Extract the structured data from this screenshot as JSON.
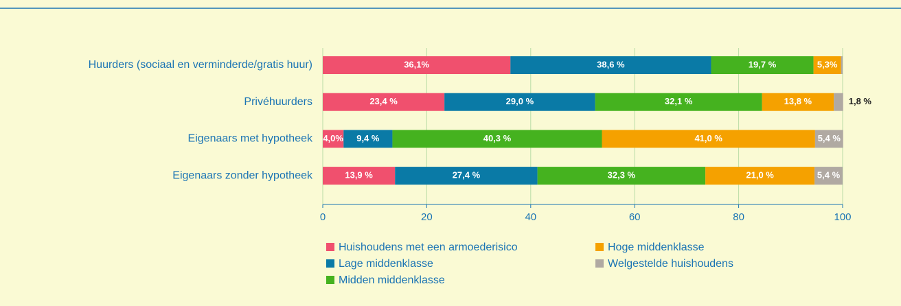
{
  "chart_data": {
    "type": "stacked_barh",
    "categories": [
      "Huurders (sociaal en verminderde/gratis huur)",
      "Privéhuurders",
      "Eigenaars met hypotheek",
      "Eigenaars zonder hypotheek"
    ],
    "series": [
      {
        "name": "Huishoudens met een armoederisico",
        "color": "#f0506e",
        "values": [
          36.1,
          23.4,
          4.0,
          13.9
        ],
        "value_labels": [
          "36,1%",
          "23,4 %",
          "4,0%",
          "13,9 %"
        ]
      },
      {
        "name": "Lage middenklasse",
        "color": "#0a7aa6",
        "values": [
          38.6,
          29.0,
          9.4,
          27.4
        ],
        "value_labels": [
          "38,6 %",
          "29,0 %",
          "9,4 %",
          "27,4 %"
        ]
      },
      {
        "name": "Midden middenklasse",
        "color": "#45b21f",
        "values": [
          19.7,
          32.1,
          40.3,
          32.3
        ],
        "value_labels": [
          "19,7 %",
          "32,1 %",
          "40,3 %",
          "32,3 %"
        ]
      },
      {
        "name": "Hoge middenklasse",
        "color": "#f5a100",
        "values": [
          5.3,
          13.8,
          41.0,
          21.0
        ],
        "value_labels": [
          "5,3%",
          "13,8 %",
          "41,0 %",
          "21,0 %"
        ]
      },
      {
        "name": "Welgestelde huishoudens",
        "color": "#b0a9a2",
        "values": [
          0.3,
          1.8,
          5.4,
          5.4
        ],
        "value_labels": [
          null,
          "1,8 %",
          "5,4 %",
          "5,4 %"
        ]
      }
    ],
    "xlim": [
      0,
      100
    ],
    "xticks": [
      0,
      20,
      40,
      60,
      80,
      100
    ],
    "grid": true
  }
}
